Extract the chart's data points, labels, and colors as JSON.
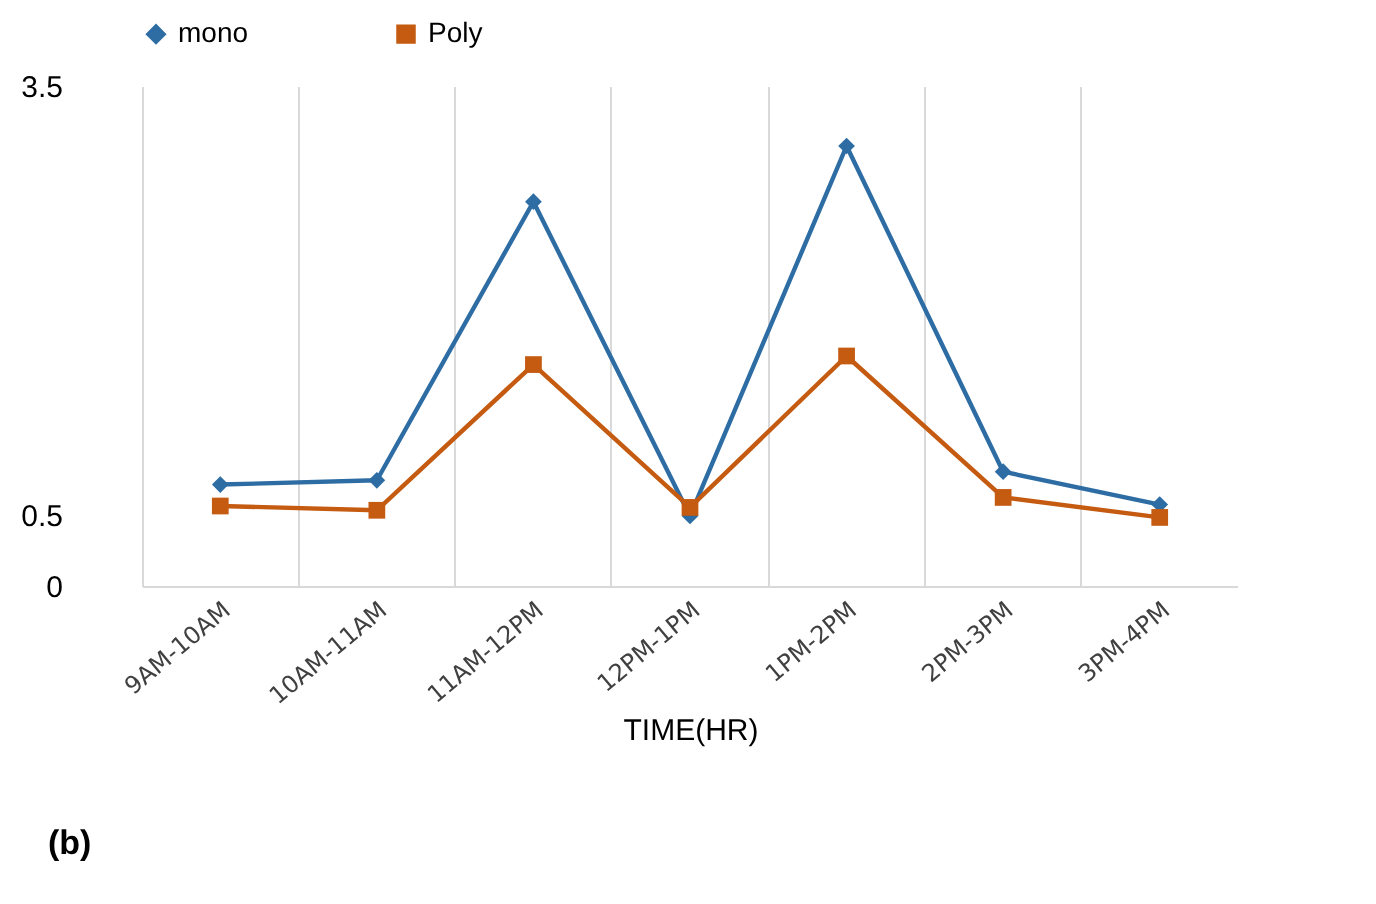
{
  "chart_data": {
    "type": "line",
    "xlabel": "TIME(HR)",
    "categories": [
      "9AM-10AM",
      "10AM-11AM",
      "11AM-12PM",
      "12PM-1PM",
      "1PM-2PM",
      "2PM-3PM",
      "3PM-4PM"
    ],
    "series": [
      {
        "name": "mono",
        "color": "#2e6da4",
        "marker": "diamond",
        "values": [
          0.71,
          0.74,
          2.69,
          0.49,
          3.08,
          0.8,
          0.57
        ]
      },
      {
        "name": "Poly",
        "color": "#c55a11",
        "marker": "square",
        "values": [
          0.56,
          0.53,
          1.55,
          0.55,
          1.61,
          0.62,
          0.48
        ]
      }
    ],
    "ylim": [
      0,
      3.5
    ],
    "yticks": [
      0,
      0.5,
      3.5
    ],
    "grid": "x",
    "legend": "top left",
    "line_style": "solid",
    "annotations": [
      "(b)"
    ]
  }
}
